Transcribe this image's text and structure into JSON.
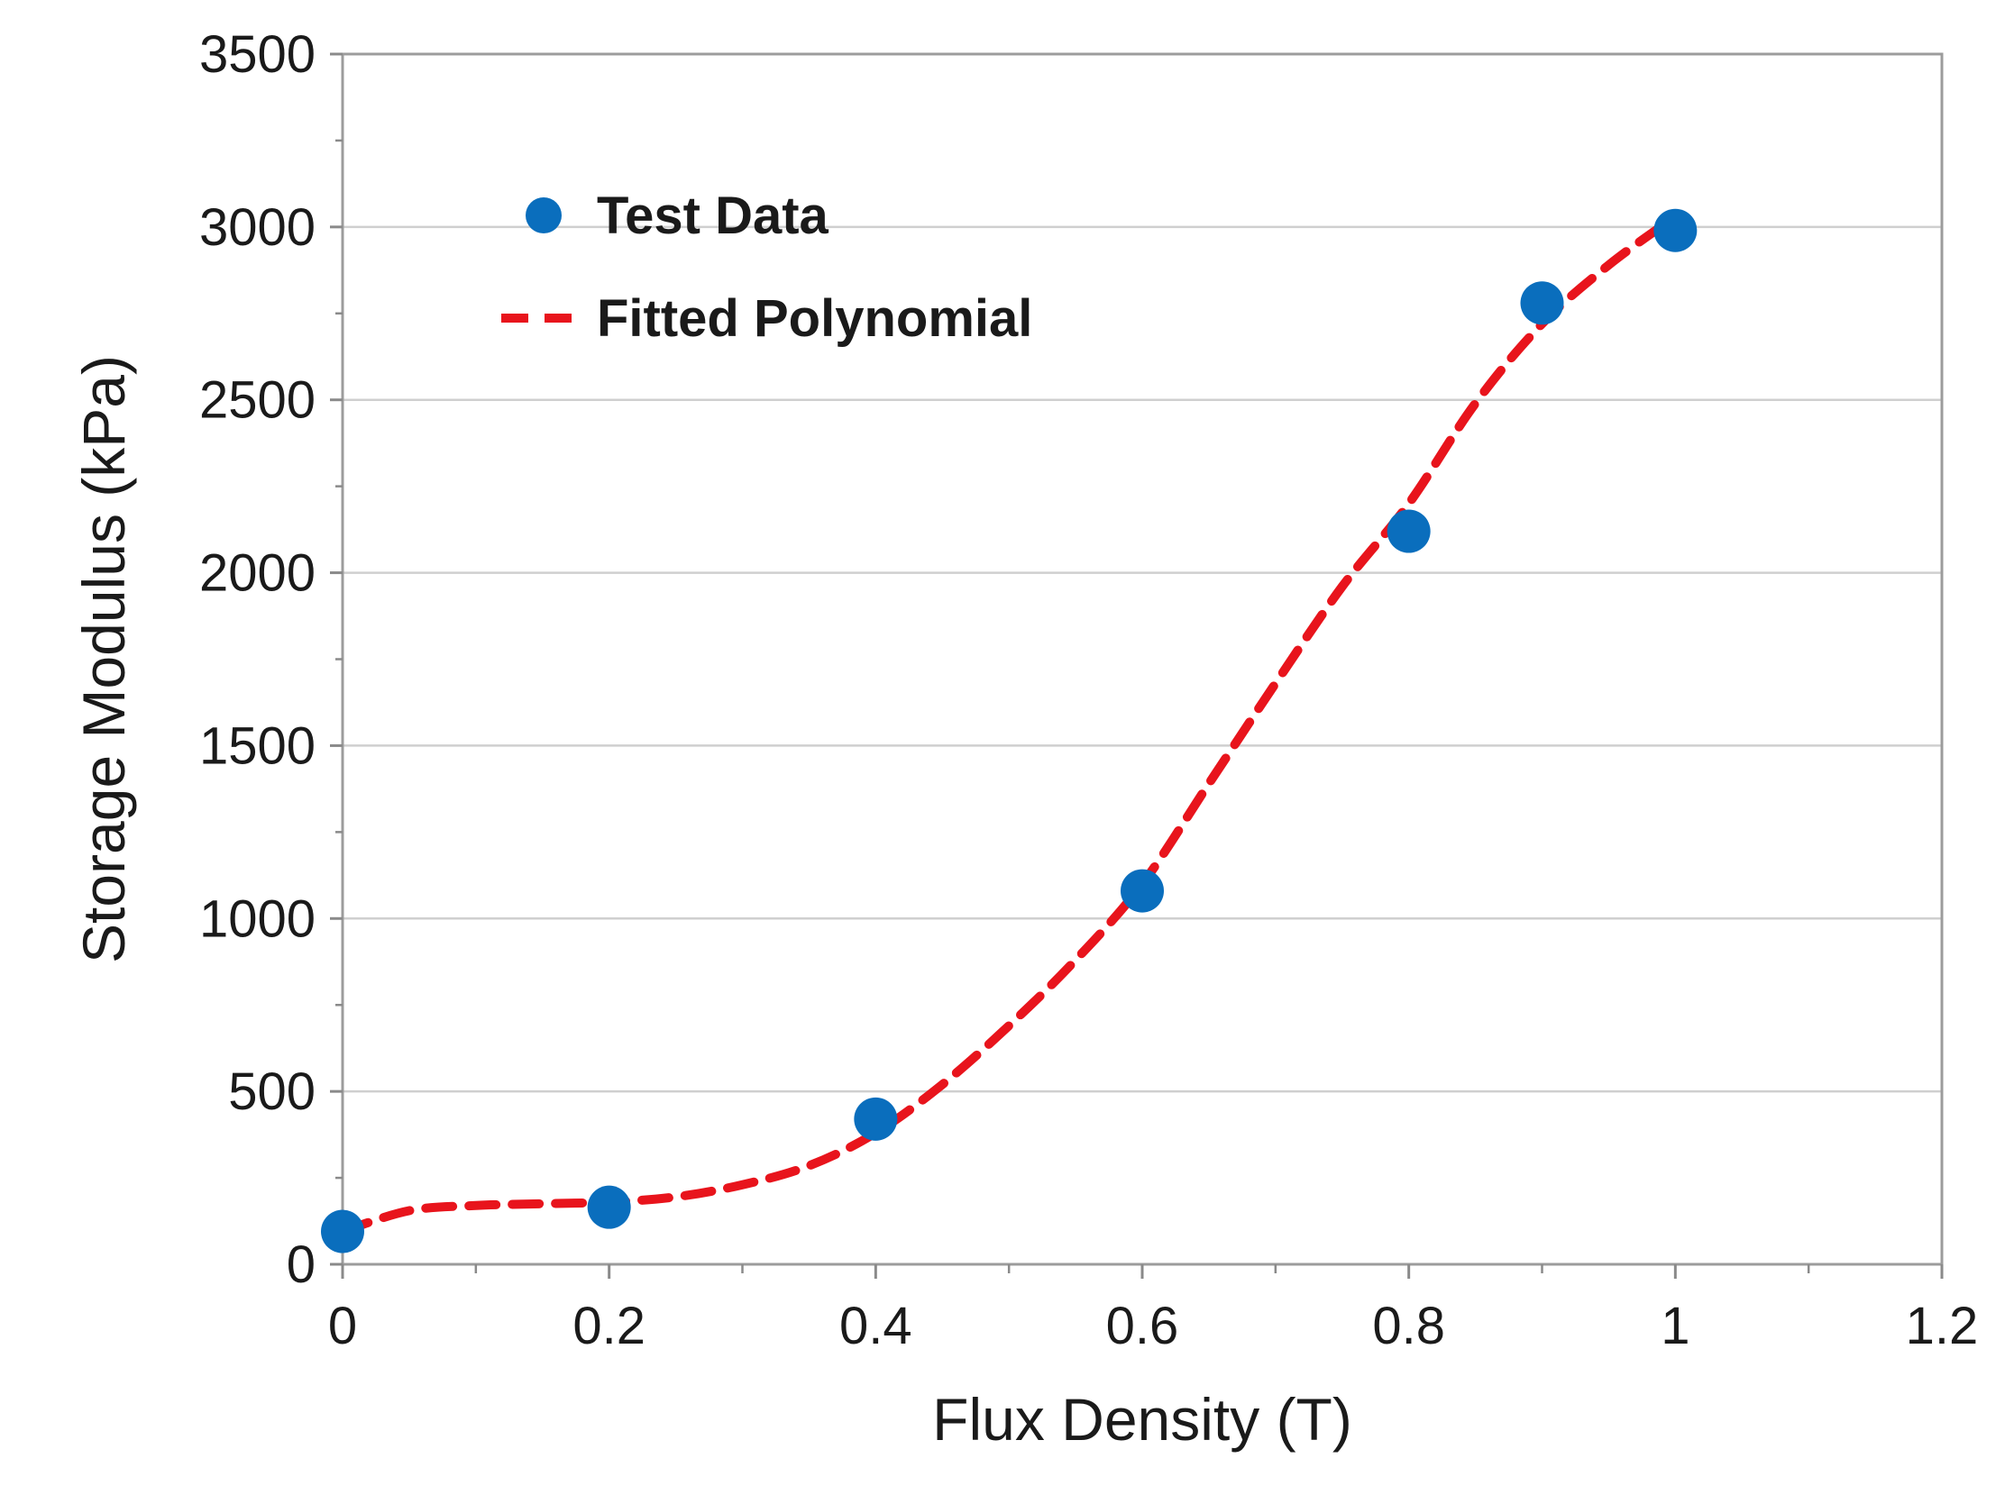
{
  "chart_data": {
    "type": "scatter",
    "title": "",
    "xlabel": "Flux Density (T)",
    "ylabel": "Storage Modulus (kPa)",
    "xlim": [
      0,
      1.2
    ],
    "ylim": [
      0,
      3500
    ],
    "x_ticks": [
      0,
      0.2,
      0.4,
      0.6,
      0.8,
      1,
      1.2
    ],
    "x_tick_labels": [
      "0",
      "0.2",
      "0.4",
      "0.6",
      "0.8",
      "1",
      "1.2"
    ],
    "y_ticks": [
      0,
      500,
      1000,
      1500,
      2000,
      2500,
      3000,
      3500
    ],
    "y_tick_labels": [
      "0",
      "500",
      "1000",
      "1500",
      "2000",
      "2500",
      "3000",
      "3500"
    ],
    "grid": "horizontal",
    "legend_position": "top-left",
    "series": [
      {
        "name": "Test Data",
        "kind": "markers",
        "color": "#0a6ebd",
        "x": [
          0,
          0.2,
          0.4,
          0.6,
          0.8,
          0.9,
          1.0
        ],
        "y": [
          95,
          165,
          420,
          1080,
          2120,
          2780,
          2990
        ]
      },
      {
        "name": "Fitted Polynomial",
        "kind": "dashed-line",
        "color": "#e8141c",
        "x": [
          0,
          0.05,
          0.1,
          0.15,
          0.2,
          0.25,
          0.3,
          0.35,
          0.4,
          0.45,
          0.5,
          0.55,
          0.6,
          0.65,
          0.7,
          0.75,
          0.8,
          0.85,
          0.9,
          0.95,
          1.0
        ],
        "y": [
          95,
          155,
          170,
          175,
          180,
          195,
          230,
          285,
          380,
          520,
          690,
          880,
          1100,
          1390,
          1680,
          1960,
          2200,
          2490,
          2720,
          2890,
          3030
        ]
      }
    ]
  }
}
